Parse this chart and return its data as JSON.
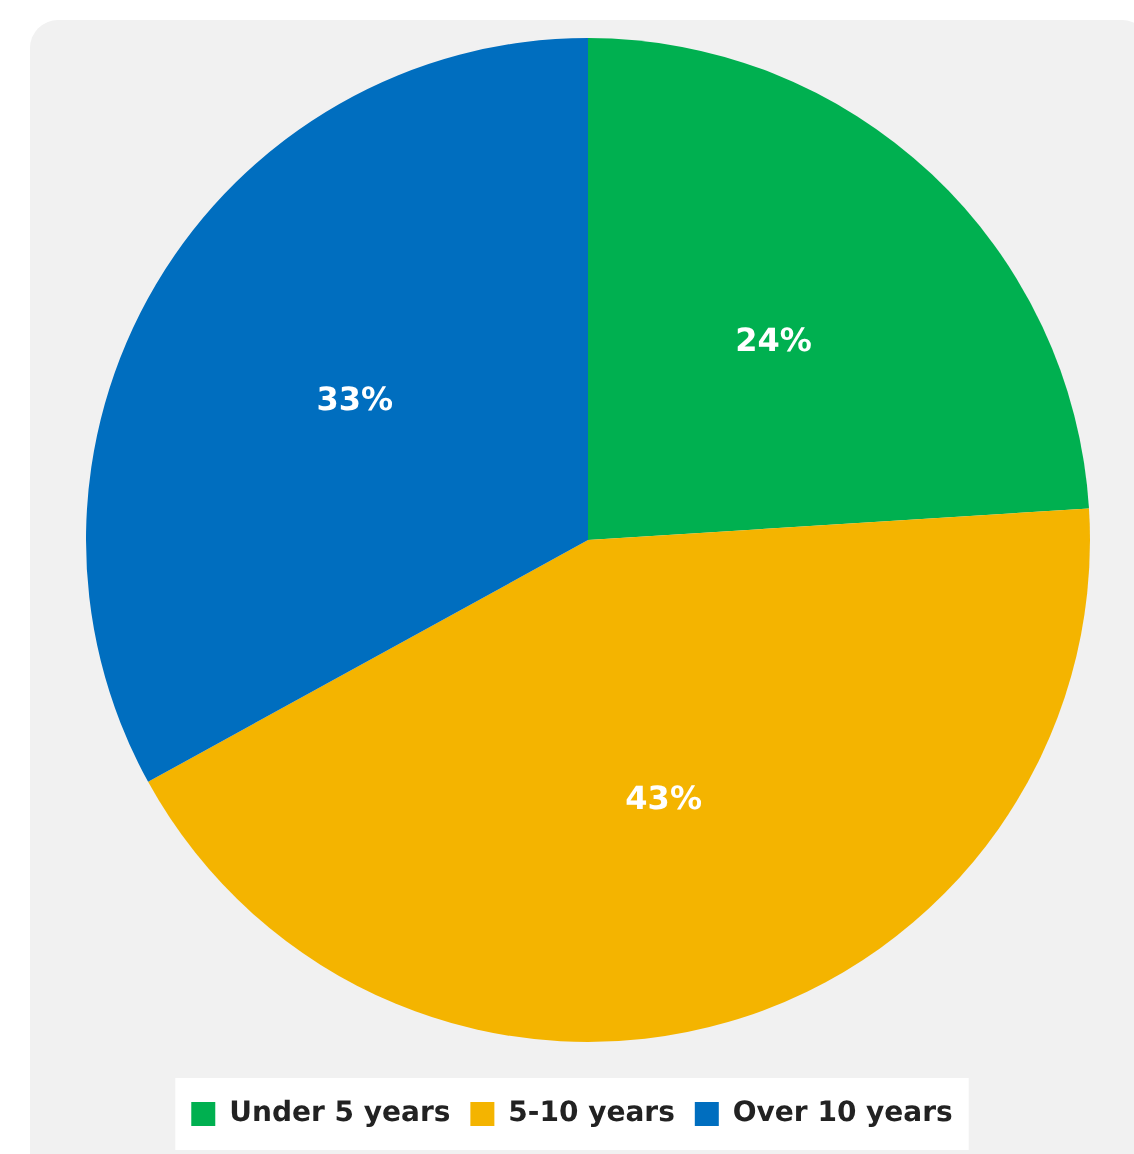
{
  "chart_data": {
    "type": "pie",
    "categories": [
      "Under 5 years",
      "5-10 years",
      "Over 10 years"
    ],
    "values": [
      24,
      43,
      33
    ],
    "colors": [
      "#00b050",
      "#f4b400",
      "#006ebf"
    ],
    "value_labels": [
      "24%",
      "43%",
      "33%"
    ],
    "legend": "bottom"
  }
}
